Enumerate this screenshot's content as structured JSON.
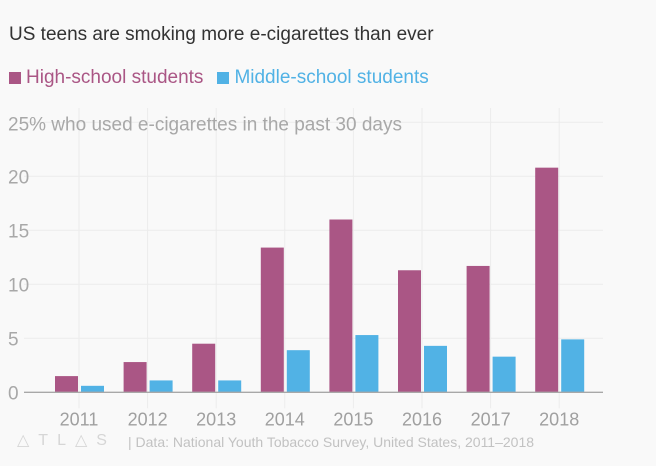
{
  "chart_data": {
    "type": "bar",
    "title": "US teens are smoking more e-cigarettes than ever",
    "ylabel": "who used e-cigarettes in the past 30 days",
    "categories": [
      "2011",
      "2012",
      "2013",
      "2014",
      "2015",
      "2016",
      "2017",
      "2018"
    ],
    "series": [
      {
        "name": "High-school students",
        "color": "#aa5685",
        "values": [
          1.5,
          2.8,
          4.5,
          13.4,
          16.0,
          11.3,
          11.7,
          20.8
        ]
      },
      {
        "name": "Middle-school students",
        "color": "#51b2e5",
        "values": [
          0.6,
          1.1,
          1.1,
          3.9,
          5.3,
          4.3,
          3.3,
          4.9
        ]
      }
    ],
    "ylim": [
      0,
      25
    ],
    "yticks": [
      "0",
      "5",
      "10",
      "15",
      "20",
      "25%"
    ],
    "grid": true,
    "legend": "top-left",
    "source": "| Data: National Youth Tobacco Survey, United States, 2011–2018",
    "logo": "ATLAS"
  }
}
